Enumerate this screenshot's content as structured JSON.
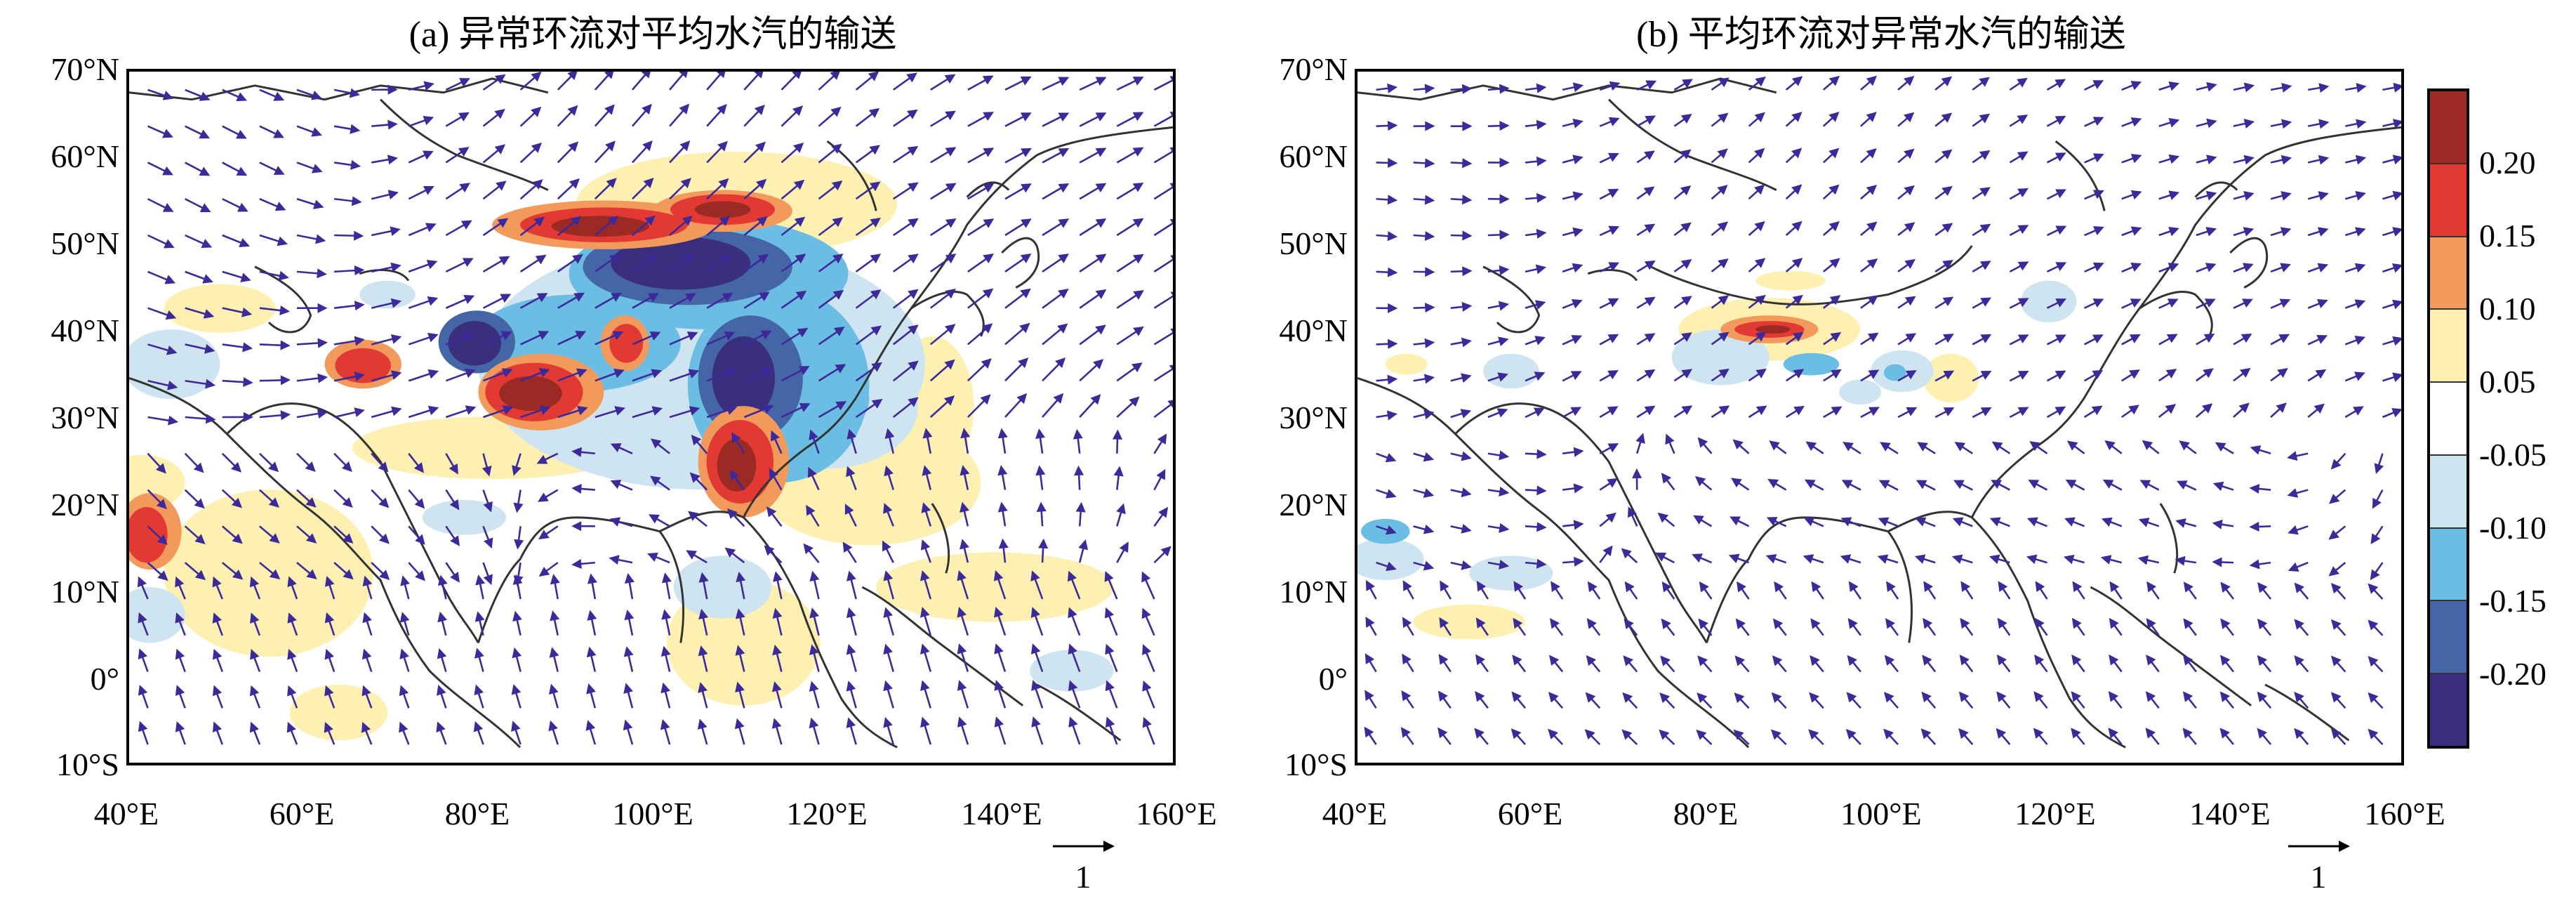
{
  "panels": [
    {
      "id": "a",
      "title": "(a) 异常环流对平均水汽的输送"
    },
    {
      "id": "b",
      "title": "(b) 平均环流对异常水汽的输送"
    }
  ],
  "lat_labels": [
    "70°N",
    "60°N",
    "50°N",
    "40°N",
    "30°N",
    "20°N",
    "10°N",
    "0°",
    "10°S"
  ],
  "lon_labels": [
    "40°E",
    "60°E",
    "80°E",
    "100°E",
    "120°E",
    "140°E",
    "160°E"
  ],
  "reference_vector": "1",
  "colorbar": {
    "labels": [
      "0.20",
      "0.15",
      "0.10",
      "0.05",
      "-0.05",
      "-0.10",
      "-0.15",
      "-0.20"
    ],
    "colors": [
      "#9b2a24",
      "#e23a33",
      "#f29a5c",
      "#fdf0b0",
      "#ffffff",
      "#cfe4f1",
      "#6cbde3",
      "#4566a6",
      "#3a2f7e"
    ]
  }
}
